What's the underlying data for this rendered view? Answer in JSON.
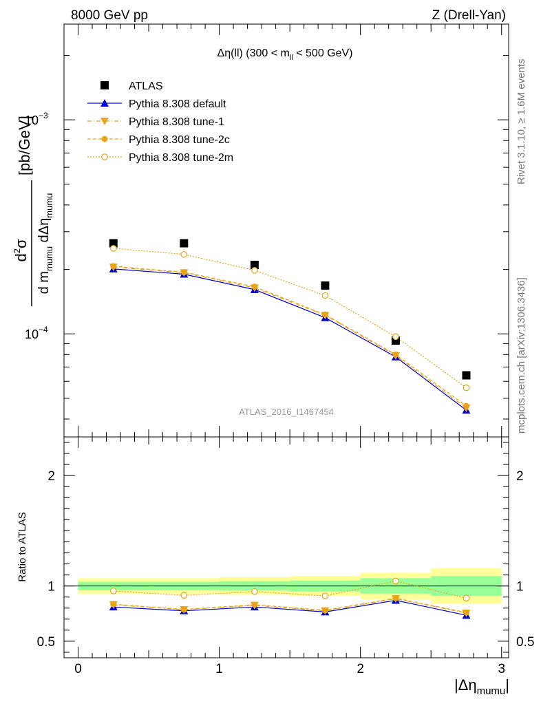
{
  "header": {
    "left": "8000 GeV pp",
    "right": "Z (Drell-Yan)"
  },
  "side": {
    "rivet": "Rivet 3.1.10, ≥ 1.6M events",
    "mcplots": "mcplots.cern.ch [arXiv:1306.3436]"
  },
  "watermark": "ATLAS_2016_I1467454",
  "colors": {
    "data": "#000000",
    "default": "#0000cc",
    "tunes": "#e8a317",
    "band_inner": "#99ff99",
    "band_outer": "#ffff99"
  },
  "chart_data": [
    {
      "type": "scatter",
      "panel": "main",
      "title": "Δη(ll) (300 < m_ll < 500 GeV)",
      "title_parts": {
        "pre": "Δη(ll) (300 < m",
        "sub": "ll",
        "post": " < 500 GeV)"
      },
      "ylabel": "d²σ / d m_mumu dΔη_mumu [pb/GeV]",
      "ylabel_parts": {
        "num": "d",
        "num_sup": "2",
        "num_sigma": "σ",
        "den_d": "d m",
        "den_sub1": "mumu",
        "den_deta": " dΔη",
        "den_sub2": "mumu",
        "unit": "[pb/GeV]"
      },
      "yscale": "log",
      "ylim": [
        3.3e-05,
        0.0028
      ],
      "yticklabels": [
        {
          "value": 0.001,
          "base": "10",
          "exp": "−3"
        },
        {
          "value": 0.0001,
          "base": "10",
          "exp": "−4"
        }
      ],
      "legend_position": "top-left",
      "x": [
        0.25,
        0.75,
        1.25,
        1.75,
        2.25,
        2.75
      ],
      "series": [
        {
          "name": "ATLAS",
          "marker": "square",
          "values": [
            0.000265,
            0.000265,
            0.00021,
            0.000168,
            9.3e-05,
            6.4e-05
          ]
        },
        {
          "name": "Pythia 8.308 default",
          "marker": "triangle-up",
          "line": "solid",
          "values": [
            0.000201,
            0.00019,
            0.000161,
            0.000119,
            7.8e-05,
            4.4e-05
          ]
        },
        {
          "name": "Pythia 8.308 tune-1",
          "marker": "triangle-down",
          "line": "dashdot",
          "values": [
            0.000205,
            0.000193,
            0.000164,
            0.000122,
            7.9e-05,
            4.5e-05
          ]
        },
        {
          "name": "Pythia 8.308 tune-2c",
          "marker": "circle",
          "line": "dashed",
          "values": [
            0.000207,
            0.000194,
            0.000166,
            0.000123,
            8e-05,
            4.6e-05
          ]
        },
        {
          "name": "Pythia 8.308 tune-2m",
          "marker": "circle-open",
          "line": "dotted",
          "values": [
            0.000251,
            0.000235,
            0.000198,
            0.000151,
            9.7e-05,
            5.6e-05
          ]
        }
      ]
    },
    {
      "type": "line",
      "panel": "ratio",
      "ylabel": "Ratio to ATLAS",
      "xlabel": "|Δη_mumu|",
      "xlabel_parts": {
        "pre": "|Δη",
        "sub": "mumu",
        "post": "|"
      },
      "xlim": [
        -0.1,
        3.05
      ],
      "ylim": [
        0.35,
        2.35
      ],
      "xticks": [
        0,
        1,
        2,
        3
      ],
      "yticks": [
        0.5,
        1,
        2
      ],
      "yticklabels": [
        "0.5",
        "1",
        "2"
      ],
      "bands": [
        {
          "lo": 0.0,
          "hi": 0.5,
          "inner": [
            0.962,
            1.038
          ],
          "outer": [
            0.93,
            1.07
          ]
        },
        {
          "lo": 0.5,
          "hi": 1.0,
          "inner": [
            0.962,
            1.038
          ],
          "outer": [
            0.93,
            1.07
          ]
        },
        {
          "lo": 1.0,
          "hi": 1.5,
          "inner": [
            0.958,
            1.042
          ],
          "outer": [
            0.92,
            1.08
          ]
        },
        {
          "lo": 1.5,
          "hi": 2.0,
          "inner": [
            0.95,
            1.05
          ],
          "outer": [
            0.91,
            1.09
          ]
        },
        {
          "lo": 2.0,
          "hi": 2.5,
          "inner": [
            0.93,
            1.07
          ],
          "outer": [
            0.88,
            1.12
          ]
        },
        {
          "lo": 2.5,
          "hi": 3.0,
          "inner": [
            0.91,
            1.09
          ],
          "outer": [
            0.84,
            1.16
          ]
        }
      ],
      "x": [
        0.25,
        0.75,
        1.25,
        1.75,
        2.25,
        2.75
      ],
      "series": [
        {
          "name": "Pythia 8.308 default",
          "values": [
            0.81,
            0.775,
            0.81,
            0.765,
            0.87,
            0.735
          ]
        },
        {
          "name": "Pythia 8.308 tune-1",
          "values": [
            0.83,
            0.785,
            0.825,
            0.775,
            0.885,
            0.755
          ]
        },
        {
          "name": "Pythia 8.308 tune-2c",
          "values": [
            0.835,
            0.788,
            0.83,
            0.78,
            0.89,
            0.76
          ]
        },
        {
          "name": "Pythia 8.308 tune-2m",
          "values": [
            0.955,
            0.915,
            0.95,
            0.91,
            1.045,
            0.89
          ]
        }
      ]
    }
  ]
}
